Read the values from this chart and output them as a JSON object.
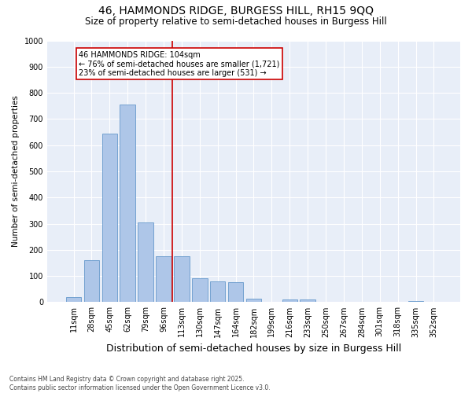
{
  "title1": "46, HAMMONDS RIDGE, BURGESS HILL, RH15 9QQ",
  "title2": "Size of property relative to semi-detached houses in Burgess Hill",
  "xlabel": "Distribution of semi-detached houses by size in Burgess Hill",
  "ylabel": "Number of semi-detached properties",
  "categories": [
    "11sqm",
    "28sqm",
    "45sqm",
    "62sqm",
    "79sqm",
    "96sqm",
    "113sqm",
    "130sqm",
    "147sqm",
    "164sqm",
    "182sqm",
    "199sqm",
    "216sqm",
    "233sqm",
    "250sqm",
    "267sqm",
    "284sqm",
    "301sqm",
    "318sqm",
    "335sqm",
    "352sqm"
  ],
  "values": [
    20,
    160,
    645,
    755,
    305,
    175,
    175,
    90,
    80,
    75,
    13,
    0,
    10,
    10,
    0,
    0,
    0,
    0,
    0,
    3,
    0
  ],
  "bar_color": "#aec6e8",
  "bar_edge_color": "#6699cc",
  "vline_x_index": 6,
  "vline_color": "#cc0000",
  "annotation_text": "46 HAMMONDS RIDGE: 104sqm\n← 76% of semi-detached houses are smaller (1,721)\n23% of semi-detached houses are larger (531) →",
  "annotation_box_color": "#cc0000",
  "ylim": [
    0,
    1000
  ],
  "yticks": [
    0,
    100,
    200,
    300,
    400,
    500,
    600,
    700,
    800,
    900,
    1000
  ],
  "bg_color": "#e8eef8",
  "footer": "Contains HM Land Registry data © Crown copyright and database right 2025.\nContains public sector information licensed under the Open Government Licence v3.0.",
  "title1_fontsize": 10,
  "title2_fontsize": 8.5,
  "xlabel_fontsize": 9,
  "ylabel_fontsize": 7.5,
  "annot_fontsize": 7,
  "tick_fontsize": 7,
  "footer_fontsize": 5.5
}
